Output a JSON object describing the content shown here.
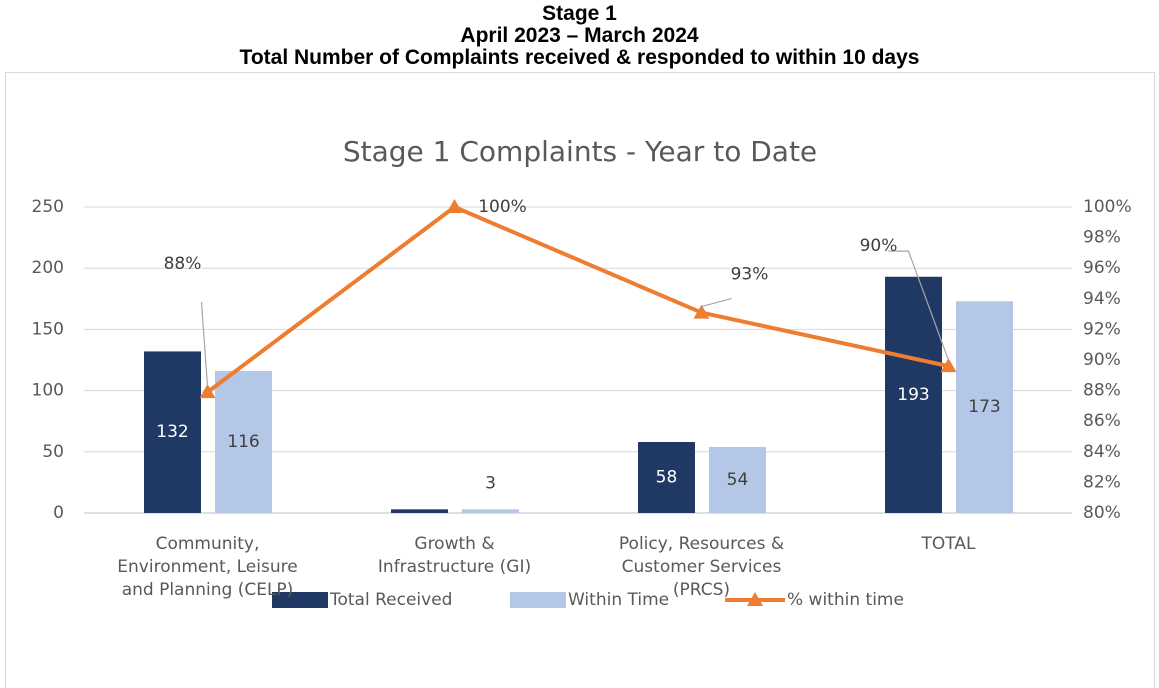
{
  "header": {
    "lines": [
      "Stage 1",
      "April 2023 – March 2024",
      "Total Number of Complaints received & responded to within 10 days"
    ]
  },
  "chart_data": {
    "type": "bar",
    "title": "Stage 1 Complaints - Year to Date",
    "categories": [
      "Community, Environment, Leisure and Planning (CELP)",
      "Growth & Infrastructure (GI)",
      "Policy, Resources & Customer Services (PRCS)",
      "TOTAL"
    ],
    "series": [
      {
        "name": "Total Received",
        "color": "#203864",
        "values": [
          132,
          3,
          58,
          193
        ],
        "value_labels": [
          "132",
          null,
          "58",
          "193"
        ]
      },
      {
        "name": "Within Time",
        "color": "#b4c7e7",
        "values": [
          116,
          3,
          54,
          173
        ]
      },
      {
        "name": "% within time",
        "color": "#ed7d31",
        "type": "line",
        "axis": "y2",
        "values": [
          87.9,
          100,
          93.1,
          89.6
        ],
        "value_labels": [
          "88%",
          "100%",
          "93%",
          "90%"
        ]
      }
    ],
    "ylim": [
      0,
      250
    ],
    "yticks": [
      0,
      50,
      100,
      150,
      200,
      250
    ],
    "y2lim": [
      80,
      100
    ],
    "y2ticks": [
      {
        "value": 80,
        "label": "80%"
      },
      {
        "value": 82,
        "label": "82%"
      },
      {
        "value": 84,
        "label": "84%"
      },
      {
        "value": 86,
        "label": "86%"
      },
      {
        "value": 88,
        "label": "88%"
      },
      {
        "value": 90,
        "label": "90%"
      },
      {
        "value": 92,
        "label": "92%"
      },
      {
        "value": 94,
        "label": "94%"
      },
      {
        "value": 96,
        "label": "96%"
      },
      {
        "value": 98,
        "label": "98%"
      },
      {
        "value": 100,
        "label": "100%"
      }
    ],
    "grid": true,
    "legend": "bottom"
  }
}
